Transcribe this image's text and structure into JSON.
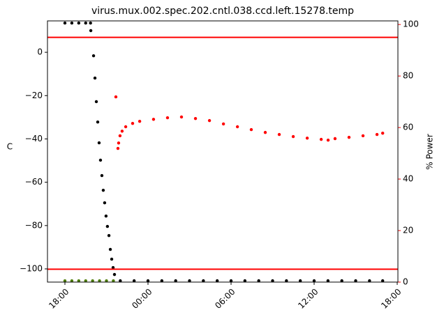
{
  "chart_data": {
    "type": "scatter",
    "title": "virus.mux.002.spec.202.cntl.038.ccd.left.15278.temp",
    "ylabel": "C",
    "y2label": "% Power",
    "y2color": "#ff0000",
    "xlim": [
      -1.26,
      24.05
    ],
    "xticks": [
      {
        "value": 0,
        "label": "18:00"
      },
      {
        "value": 6,
        "label": "00:00"
      },
      {
        "value": 12,
        "label": "06:00"
      },
      {
        "value": 18,
        "label": "12:00"
      },
      {
        "value": 24,
        "label": "18:00"
      }
    ],
    "ylim": [
      -106.1,
      14.5
    ],
    "yticks": [
      {
        "value": -100,
        "label": "−100"
      },
      {
        "value": -80,
        "label": "−80"
      },
      {
        "value": -60,
        "label": "−60"
      },
      {
        "value": -40,
        "label": "−40"
      },
      {
        "value": -20,
        "label": "−20"
      },
      0
    ],
    "y2lim": [
      0,
      101.4
    ],
    "y2ticks": [
      0,
      20,
      40,
      60,
      80,
      100
    ],
    "hlines": {
      "axis": "y2",
      "color": "#ff0000",
      "values": [
        95,
        5
      ]
    },
    "series": [
      {
        "color": "#000000",
        "axis": "y",
        "x": [
          0,
          0.5,
          1.0,
          1.5,
          1.85,
          1.87,
          2.07,
          2.17,
          2.27,
          2.37,
          2.47,
          2.57,
          2.67,
          2.77,
          2.87,
          2.97,
          3.07,
          3.18,
          3.28,
          3.38,
          3.48,
          3.58,
          4,
          5,
          6,
          7,
          8,
          9,
          10,
          11,
          12,
          13,
          14,
          15,
          16,
          17,
          18,
          19,
          20,
          21,
          22,
          22.95
        ],
        "values": [
          13.5,
          13.5,
          13.5,
          13.5,
          13.5,
          10.0,
          -1.6,
          -11.9,
          -22.8,
          -32.2,
          -41.8,
          -49.8,
          -56.9,
          -63.7,
          -69.5,
          -75.6,
          -80.4,
          -84.6,
          -91.0,
          -95.5,
          -99.4,
          -102.6,
          -105.5,
          -105.5,
          -105.5,
          -105.5,
          -105.5,
          -105.5,
          -105.5,
          -105.5,
          -105.5,
          -105.5,
          -105.5,
          -105.5,
          -105.5,
          -105.5,
          -105.5,
          -105.5,
          -105.5,
          -105.5,
          -105.5,
          -105.5
        ]
      },
      {
        "color": "#4a7a00",
        "axis": "y2",
        "x": [
          0,
          0.5,
          1,
          1.5,
          2,
          2.5,
          3,
          3.5
        ],
        "values": [
          0.5,
          0.5,
          0.5,
          0.5,
          0.5,
          0.5,
          0.5,
          0.5
        ]
      },
      {
        "color": "#ff0000",
        "axis": "y2",
        "x": [
          3.68,
          3.83,
          3.88,
          3.98,
          4.13,
          4.39,
          4.89,
          5.4,
          6.4,
          7.41,
          8.42,
          9.43,
          10.44,
          11.45,
          12.46,
          13.46,
          14.47,
          15.48,
          16.49,
          17.5,
          18.51,
          19.01,
          19.51,
          20.52,
          21.53,
          22.54,
          22.95
        ],
        "values": [
          71.9,
          51.9,
          54.0,
          56.8,
          58.6,
          60.3,
          61.6,
          62.4,
          63.2,
          63.8,
          64.1,
          63.5,
          62.7,
          61.4,
          60.3,
          59.2,
          58.1,
          57.3,
          56.5,
          55.9,
          55.4,
          55.1,
          55.7,
          56.2,
          56.8,
          57.3,
          57.8
        ]
      }
    ]
  }
}
